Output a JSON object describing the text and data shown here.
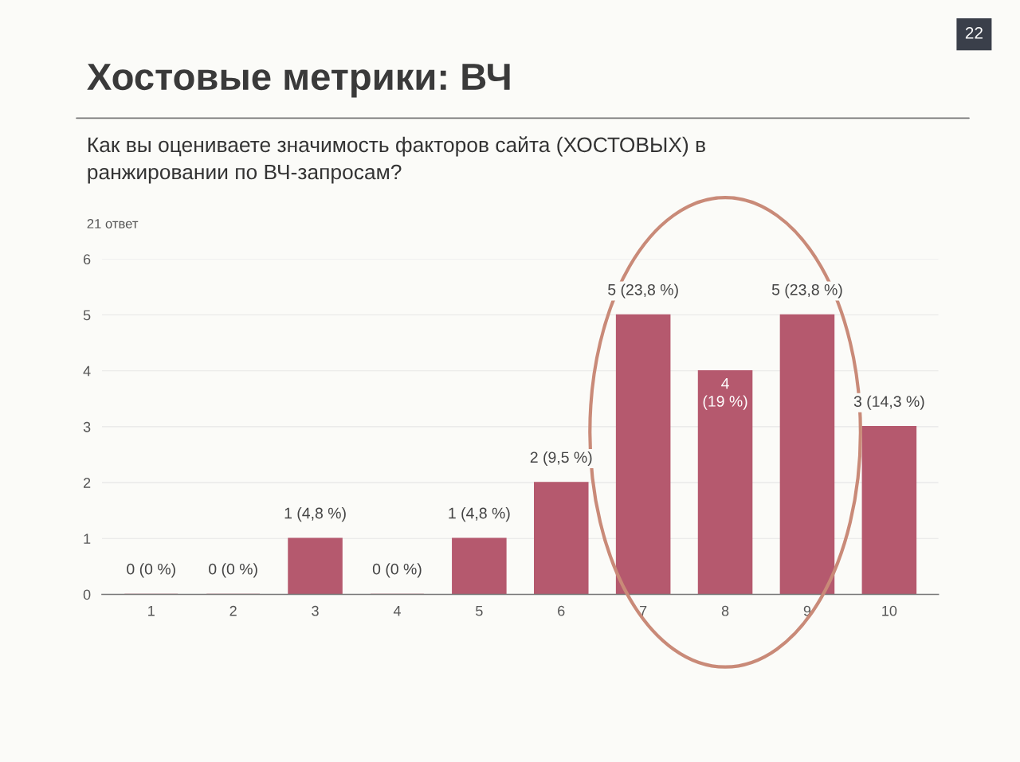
{
  "chart_data": {
    "type": "bar",
    "title": "Хостовые метрики: ВЧ",
    "subtitle": "Как вы оцениваете значимость факторов сайта (ХОСТОВЫХ) в\nранжировании по ВЧ-запросам?",
    "annotations": [
      "21 ответ",
      "22"
    ],
    "categories": [
      "1",
      "2",
      "3",
      "4",
      "5",
      "6",
      "7",
      "8",
      "9",
      "10"
    ],
    "values": [
      0,
      0,
      1,
      0,
      1,
      2,
      5,
      4,
      5,
      3
    ],
    "color": "#b5596e",
    "value_labels": [
      "0 (0 %)",
      "0 (0 %)",
      "1 (4,8 %)",
      "0 (0 %)",
      "1 (4,8 %)",
      "2 (9,5 %)",
      "5 (23,8 %)",
      "4\n(19 %)",
      "5 (23,8 %)",
      "3 (14,3 %)"
    ],
    "ylim": [
      0,
      6
    ],
    "yticks": [
      0,
      1,
      2,
      3,
      4,
      5,
      6
    ],
    "grid": "y"
  }
}
